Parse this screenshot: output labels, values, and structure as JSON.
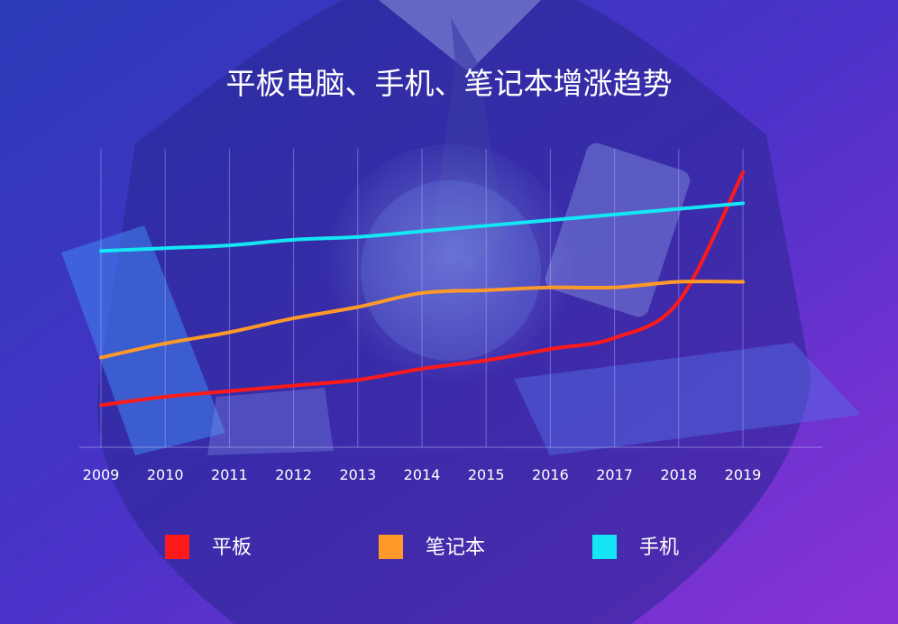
{
  "chart_data": {
    "type": "line",
    "title": "平板电脑、手机、笔记本增涨趋势",
    "xlabel": "",
    "ylabel": "",
    "x": [
      "2009",
      "2010",
      "2011",
      "2012",
      "2013",
      "2014",
      "2015",
      "2016",
      "2017",
      "2018",
      "2019"
    ],
    "ylim": [
      0,
      100
    ],
    "grid": "vertical",
    "legend_position": "bottom",
    "series": [
      {
        "name": "平板",
        "color": "#ff1a1a",
        "values": [
          15,
          18,
          20,
          22,
          24,
          28,
          31,
          35,
          39,
          52,
          98
        ]
      },
      {
        "name": "笔记本",
        "color": "#ff9a2a",
        "values": [
          32,
          37,
          41,
          46,
          50,
          55,
          56,
          57,
          57,
          59,
          59
        ]
      },
      {
        "name": "手机",
        "color": "#14e6f5",
        "values": [
          70,
          71,
          72,
          74,
          75,
          77,
          79,
          81,
          83,
          85,
          87
        ]
      }
    ]
  }
}
